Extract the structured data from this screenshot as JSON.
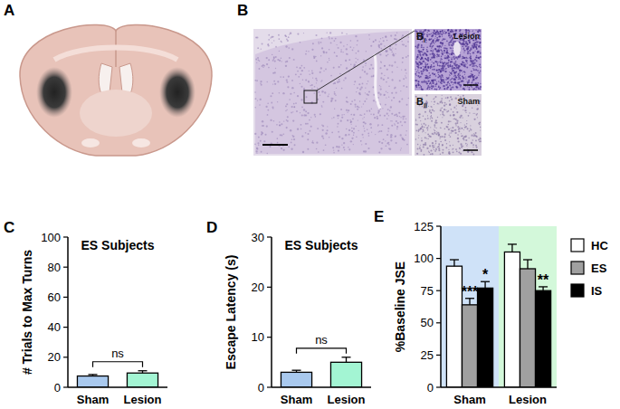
{
  "figure": {
    "panels": [
      {
        "label": "A"
      },
      {
        "label": "B",
        "insets": [
          {
            "label": "B",
            "sub": "i",
            "caption": "Lesion"
          },
          {
            "label": "B",
            "sub": "ii",
            "caption": "Sham"
          }
        ]
      }
    ]
  },
  "chart_data": [
    {
      "panel": "C",
      "type": "bar",
      "title": "ES Subjects",
      "y_label": "# Trials to Max Turns",
      "categories": [
        "Sham",
        "Lesion"
      ],
      "values": [
        7.5,
        9.5
      ],
      "errors": [
        1,
        1.5
      ],
      "colors": [
        "#a9c9ee",
        "#a3f5d3"
      ],
      "ylim": [
        0,
        100
      ],
      "yticks": [
        0,
        20,
        40,
        60,
        80,
        100
      ],
      "annotation": "ns"
    },
    {
      "panel": "D",
      "type": "bar",
      "title": "ES Subjects",
      "y_label": "Escape Latency (s)",
      "categories": [
        "Sham",
        "Lesion"
      ],
      "values": [
        3.0,
        5.0
      ],
      "errors": [
        0.4,
        1.0
      ],
      "colors": [
        "#a9c9ee",
        "#a3f5d3"
      ],
      "ylim": [
        0,
        30
      ],
      "yticks": [
        0,
        10,
        20,
        30
      ],
      "annotation": "ns"
    },
    {
      "panel": "E",
      "type": "bar",
      "y_label": "%Baseline JSE",
      "categories": [
        "Sham",
        "Lesion"
      ],
      "series": [
        {
          "name": "HC",
          "color": "#ffffff",
          "values": [
            94,
            105
          ],
          "errors": [
            5,
            6
          ],
          "annotations": [
            null,
            null
          ]
        },
        {
          "name": "ES",
          "color": "#a0a0a0",
          "values": [
            64,
            92
          ],
          "errors": [
            5,
            7
          ],
          "annotations": [
            "***",
            null
          ]
        },
        {
          "name": "IS",
          "color": "#000000",
          "values": [
            77,
            75
          ],
          "errors": [
            5,
            3
          ],
          "annotations": [
            "*",
            "**"
          ]
        }
      ],
      "ylim": [
        0,
        125
      ],
      "yticks": [
        0,
        25,
        50,
        75,
        100,
        125
      ],
      "legend": "right"
    }
  ]
}
